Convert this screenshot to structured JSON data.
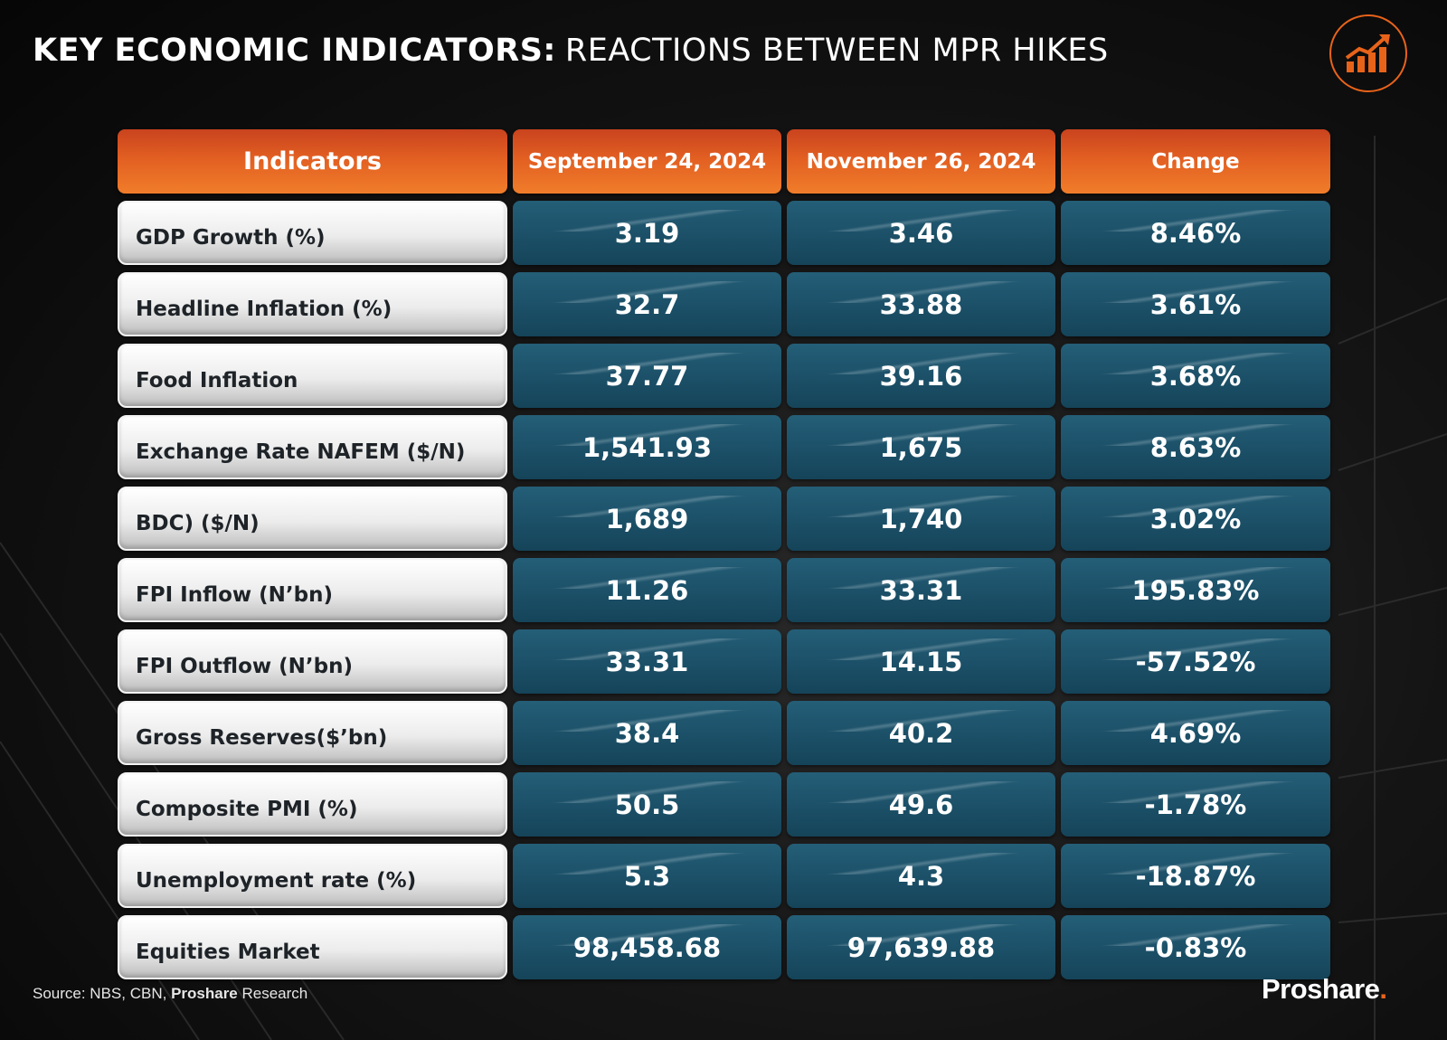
{
  "title": {
    "bold": "KEY ECONOMIC INDICATORS:",
    "light": "REACTIONS BETWEEN MPR HIKES"
  },
  "colors": {
    "accent_orange": "#e8631a",
    "value_teal": "#1c5169",
    "label_grey": "#e6e6e6"
  },
  "icons": {
    "logo": "bar-chart-trend-up-icon"
  },
  "chart_data": {
    "type": "table",
    "columns": [
      "Indicators",
      "September 24, 2024",
      "November 26, 2024",
      "Change"
    ],
    "rows": [
      {
        "indicator": "GDP Growth (%)",
        "sep": "3.19",
        "nov": "3.46",
        "change": "8.46%"
      },
      {
        "indicator": "Headline Inflation (%)",
        "sep": "32.7",
        "nov": "33.88",
        "change": "3.61%"
      },
      {
        "indicator": "Food Inflation",
        "sep": "37.77",
        "nov": "39.16",
        "change": "3.68%"
      },
      {
        "indicator": "Exchange Rate NAFEM ($/N)",
        "sep": "1,541.93",
        "nov": "1,675",
        "change": "8.63%"
      },
      {
        "indicator": "BDC) ($/N)",
        "sep": "1,689",
        "nov": "1,740",
        "change": "3.02%"
      },
      {
        "indicator": "FPI Inflow (N’bn)",
        "sep": "11.26",
        "nov": "33.31",
        "change": "195.83%"
      },
      {
        "indicator": "FPI Outflow (N’bn)",
        "sep": "33.31",
        "nov": "14.15",
        "change": "-57.52%"
      },
      {
        "indicator": "Gross Reserves($’bn)",
        "sep": "38.4",
        "nov": "40.2",
        "change": "4.69%"
      },
      {
        "indicator": "Composite PMI (%)",
        "sep": "50.5",
        "nov": "49.6",
        "change": "-1.78%"
      },
      {
        "indicator": "Unemployment rate (%)",
        "sep": "5.3",
        "nov": "4.3",
        "change": "-18.87%"
      },
      {
        "indicator": "Equities Market",
        "sep": "98,458.68",
        "nov": "97,639.88",
        "change": "-0.83%"
      }
    ]
  },
  "footer": {
    "source_prefix": "Source: NBS, CBN,",
    "source_bold": "Proshare",
    "source_suffix": "Research",
    "brand": "Proshare",
    "brand_dot": "."
  }
}
